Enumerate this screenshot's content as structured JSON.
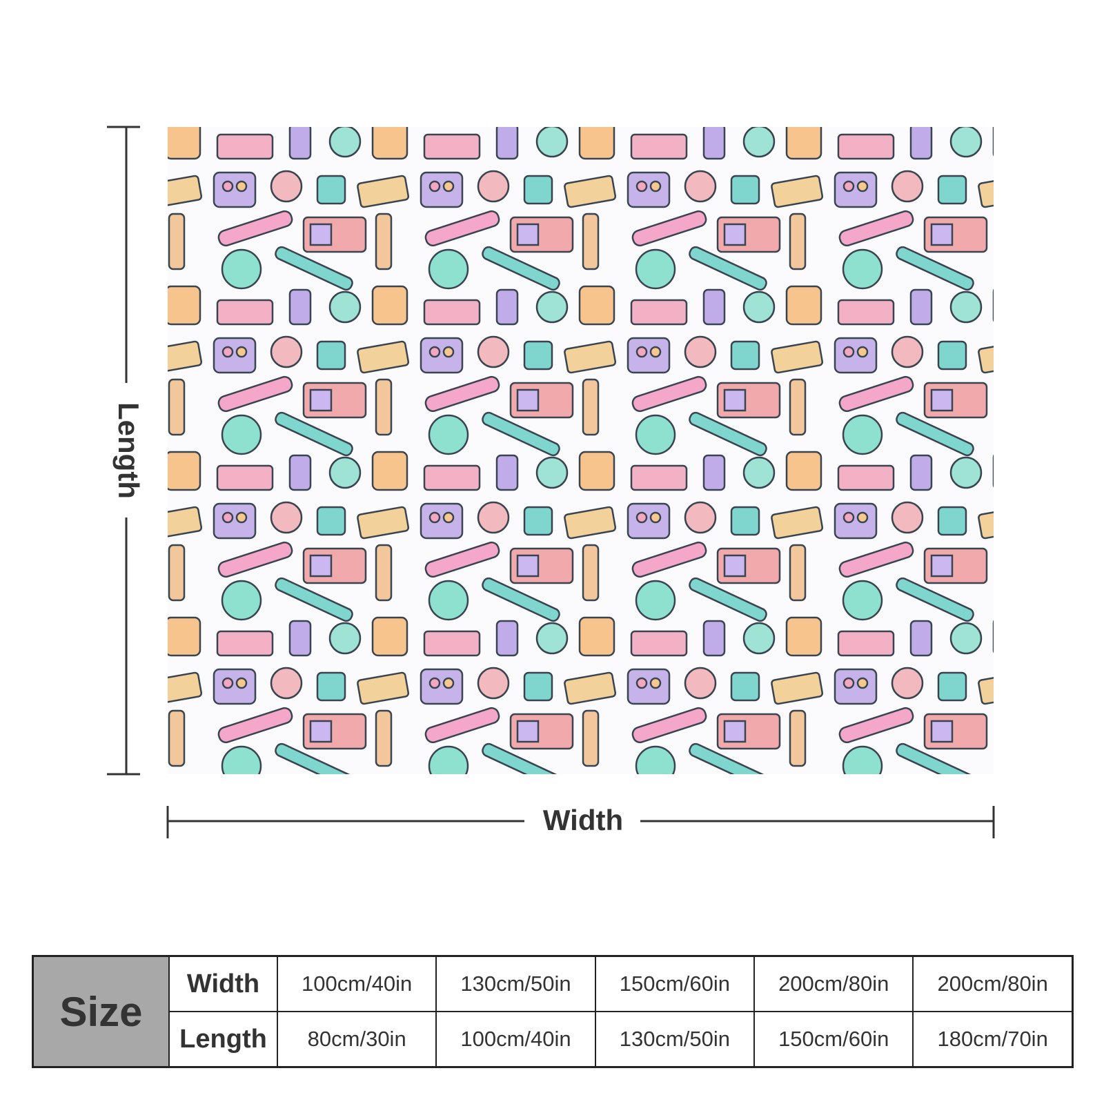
{
  "dimensions": {
    "length_label": "Length",
    "width_label": "Width"
  },
  "table": {
    "size_label": "Size",
    "rows": [
      {
        "label": "Width",
        "values": [
          "100cm/40in",
          "130cm/50in",
          "150cm/60in",
          "200cm/80in",
          "200cm/80in"
        ]
      },
      {
        "label": "Length",
        "values": [
          "80cm/30in",
          "100cm/40in",
          "130cm/50in",
          "150cm/60in",
          "180cm/70in"
        ]
      }
    ]
  }
}
